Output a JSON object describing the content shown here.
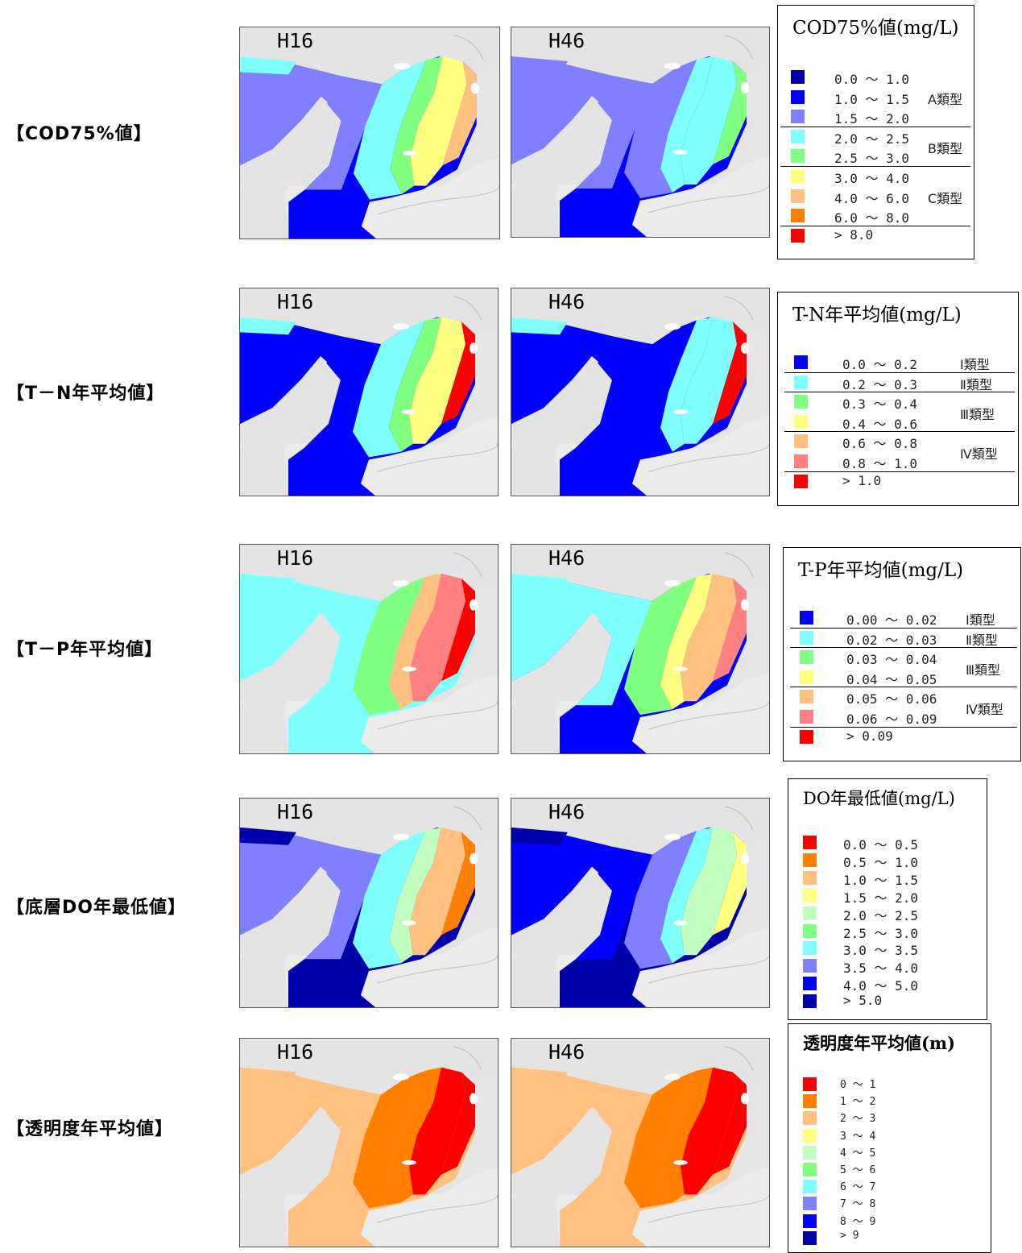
{
  "rows": [
    {
      "label": "【COD75%値】",
      "maps": [
        {
          "label": "H16"
        },
        {
          "label": "H46"
        }
      ],
      "legend": {
        "title": "COD75%値(mg/L)",
        "items": [
          {
            "range": "0.0 ～ 1.0",
            "color": "#0000aa"
          },
          {
            "range": "1.0 ～ 1.5",
            "color": "#0000ff"
          },
          {
            "range": "1.5 ～ 2.0",
            "color": "#8080ff"
          },
          {
            "range": "2.0 ～ 2.5",
            "color": "#80ffff"
          },
          {
            "range": "2.5 ～ 3.0",
            "color": "#80ff80"
          },
          {
            "range": "3.0 ～ 4.0",
            "color": "#ffff80"
          },
          {
            "range": "4.0 ～ 6.0",
            "color": "#ffc080"
          },
          {
            "range": "6.0 ～ 8.0",
            "color": "#ff8000"
          },
          {
            "range": "> 8.0",
            "color": "#ff0000"
          }
        ],
        "types": [
          {
            "label": "A類型",
            "row": 1
          },
          {
            "label": "B類型",
            "row": 3.5
          },
          {
            "label": "C類型",
            "row": 6
          }
        ],
        "separators": [
          3,
          5,
          8
        ]
      }
    },
    {
      "label": "【T－N年平均値】",
      "maps": [
        {
          "label": "H16"
        },
        {
          "label": "H46"
        }
      ],
      "legend": {
        "title": "T-N年平均値(mg/L)",
        "items": [
          {
            "range": "0.0 ～ 0.2",
            "color": "#0000ff"
          },
          {
            "range": "0.2 ～ 0.3",
            "color": "#80ffff"
          },
          {
            "range": "0.3 ～ 0.4",
            "color": "#80ff80"
          },
          {
            "range": "0.4 ～ 0.6",
            "color": "#ffff80"
          },
          {
            "range": "0.6 ～ 0.8",
            "color": "#ffc080"
          },
          {
            "range": "0.8 ～ 1.0",
            "color": "#ff8080"
          },
          {
            "range": "> 1.0",
            "color": "#ff0000"
          }
        ],
        "types": [
          {
            "label": "Ⅰ類型",
            "row": 0
          },
          {
            "label": "Ⅱ類型",
            "row": 1
          },
          {
            "label": "Ⅲ類型",
            "row": 2.5
          },
          {
            "label": "Ⅳ類型",
            "row": 4.5
          }
        ],
        "separators": [
          1,
          2,
          4,
          6
        ]
      }
    },
    {
      "label": "【T－P年平均値】",
      "maps": [
        {
          "label": "H16"
        },
        {
          "label": "H46"
        }
      ],
      "legend": {
        "title": "T-P年平均値(mg/L)",
        "items": [
          {
            "range": "0.00 ～ 0.02",
            "color": "#0000ff"
          },
          {
            "range": "0.02 ～ 0.03",
            "color": "#80ffff"
          },
          {
            "range": "0.03 ～ 0.04",
            "color": "#80ff80"
          },
          {
            "range": "0.04 ～ 0.05",
            "color": "#ffff80"
          },
          {
            "range": "0.05 ～ 0.06",
            "color": "#ffc080"
          },
          {
            "range": "0.06 ～ 0.09",
            "color": "#ff8080"
          },
          {
            "range": "> 0.09",
            "color": "#ff0000"
          }
        ],
        "types": [
          {
            "label": "Ⅰ類型",
            "row": 0
          },
          {
            "label": "Ⅱ類型",
            "row": 1
          },
          {
            "label": "Ⅲ類型",
            "row": 2.5
          },
          {
            "label": "Ⅳ類型",
            "row": 4.5
          }
        ],
        "separators": [
          1,
          2,
          4,
          6
        ]
      }
    },
    {
      "label": "【底層DO年最低値】",
      "maps": [
        {
          "label": "H16"
        },
        {
          "label": "H46"
        }
      ],
      "legend": {
        "title": "DO年最低値(mg/L)",
        "items": [
          {
            "range": "0.0 ～ 0.5",
            "color": "#ff0000"
          },
          {
            "range": "0.5 ～ 1.0",
            "color": "#ff8000"
          },
          {
            "range": "1.0 ～ 1.5",
            "color": "#ffc080"
          },
          {
            "range": "1.5 ～ 2.0",
            "color": "#ffff80"
          },
          {
            "range": "2.0 ～ 2.5",
            "color": "#c0ffc0"
          },
          {
            "range": "2.5 ～ 3.0",
            "color": "#80ff80"
          },
          {
            "range": "3.0 ～ 3.5",
            "color": "#80ffff"
          },
          {
            "range": "3.5 ～ 4.0",
            "color": "#8080ff"
          },
          {
            "range": "4.0 ～ 5.0",
            "color": "#0000ff"
          },
          {
            "range": "> 5.0",
            "color": "#0000aa"
          }
        ],
        "types": [],
        "separators": []
      }
    },
    {
      "label": "【透明度年平均値】",
      "maps": [
        {
          "label": "H16"
        },
        {
          "label": "H46"
        }
      ],
      "legend": {
        "title": "透明度年平均値(m)",
        "items": [
          {
            "range": "0 ～ 1",
            "color": "#ff0000"
          },
          {
            "range": "1 ～ 2",
            "color": "#ff8000"
          },
          {
            "range": "2 ～ 3",
            "color": "#ffc080"
          },
          {
            "range": "3 ～ 4",
            "color": "#ffff80"
          },
          {
            "range": "4 ～ 5",
            "color": "#c0ffc0"
          },
          {
            "range": "5 ～ 6",
            "color": "#80ff80"
          },
          {
            "range": "6 ～ 7",
            "color": "#80ffff"
          },
          {
            "range": "7 ～ 8",
            "color": "#8080ff"
          },
          {
            "range": "8 ～ 9",
            "color": "#0000ff"
          },
          {
            "range": "> 9",
            "color": "#0000aa"
          }
        ],
        "types": [],
        "separators": []
      }
    }
  ]
}
